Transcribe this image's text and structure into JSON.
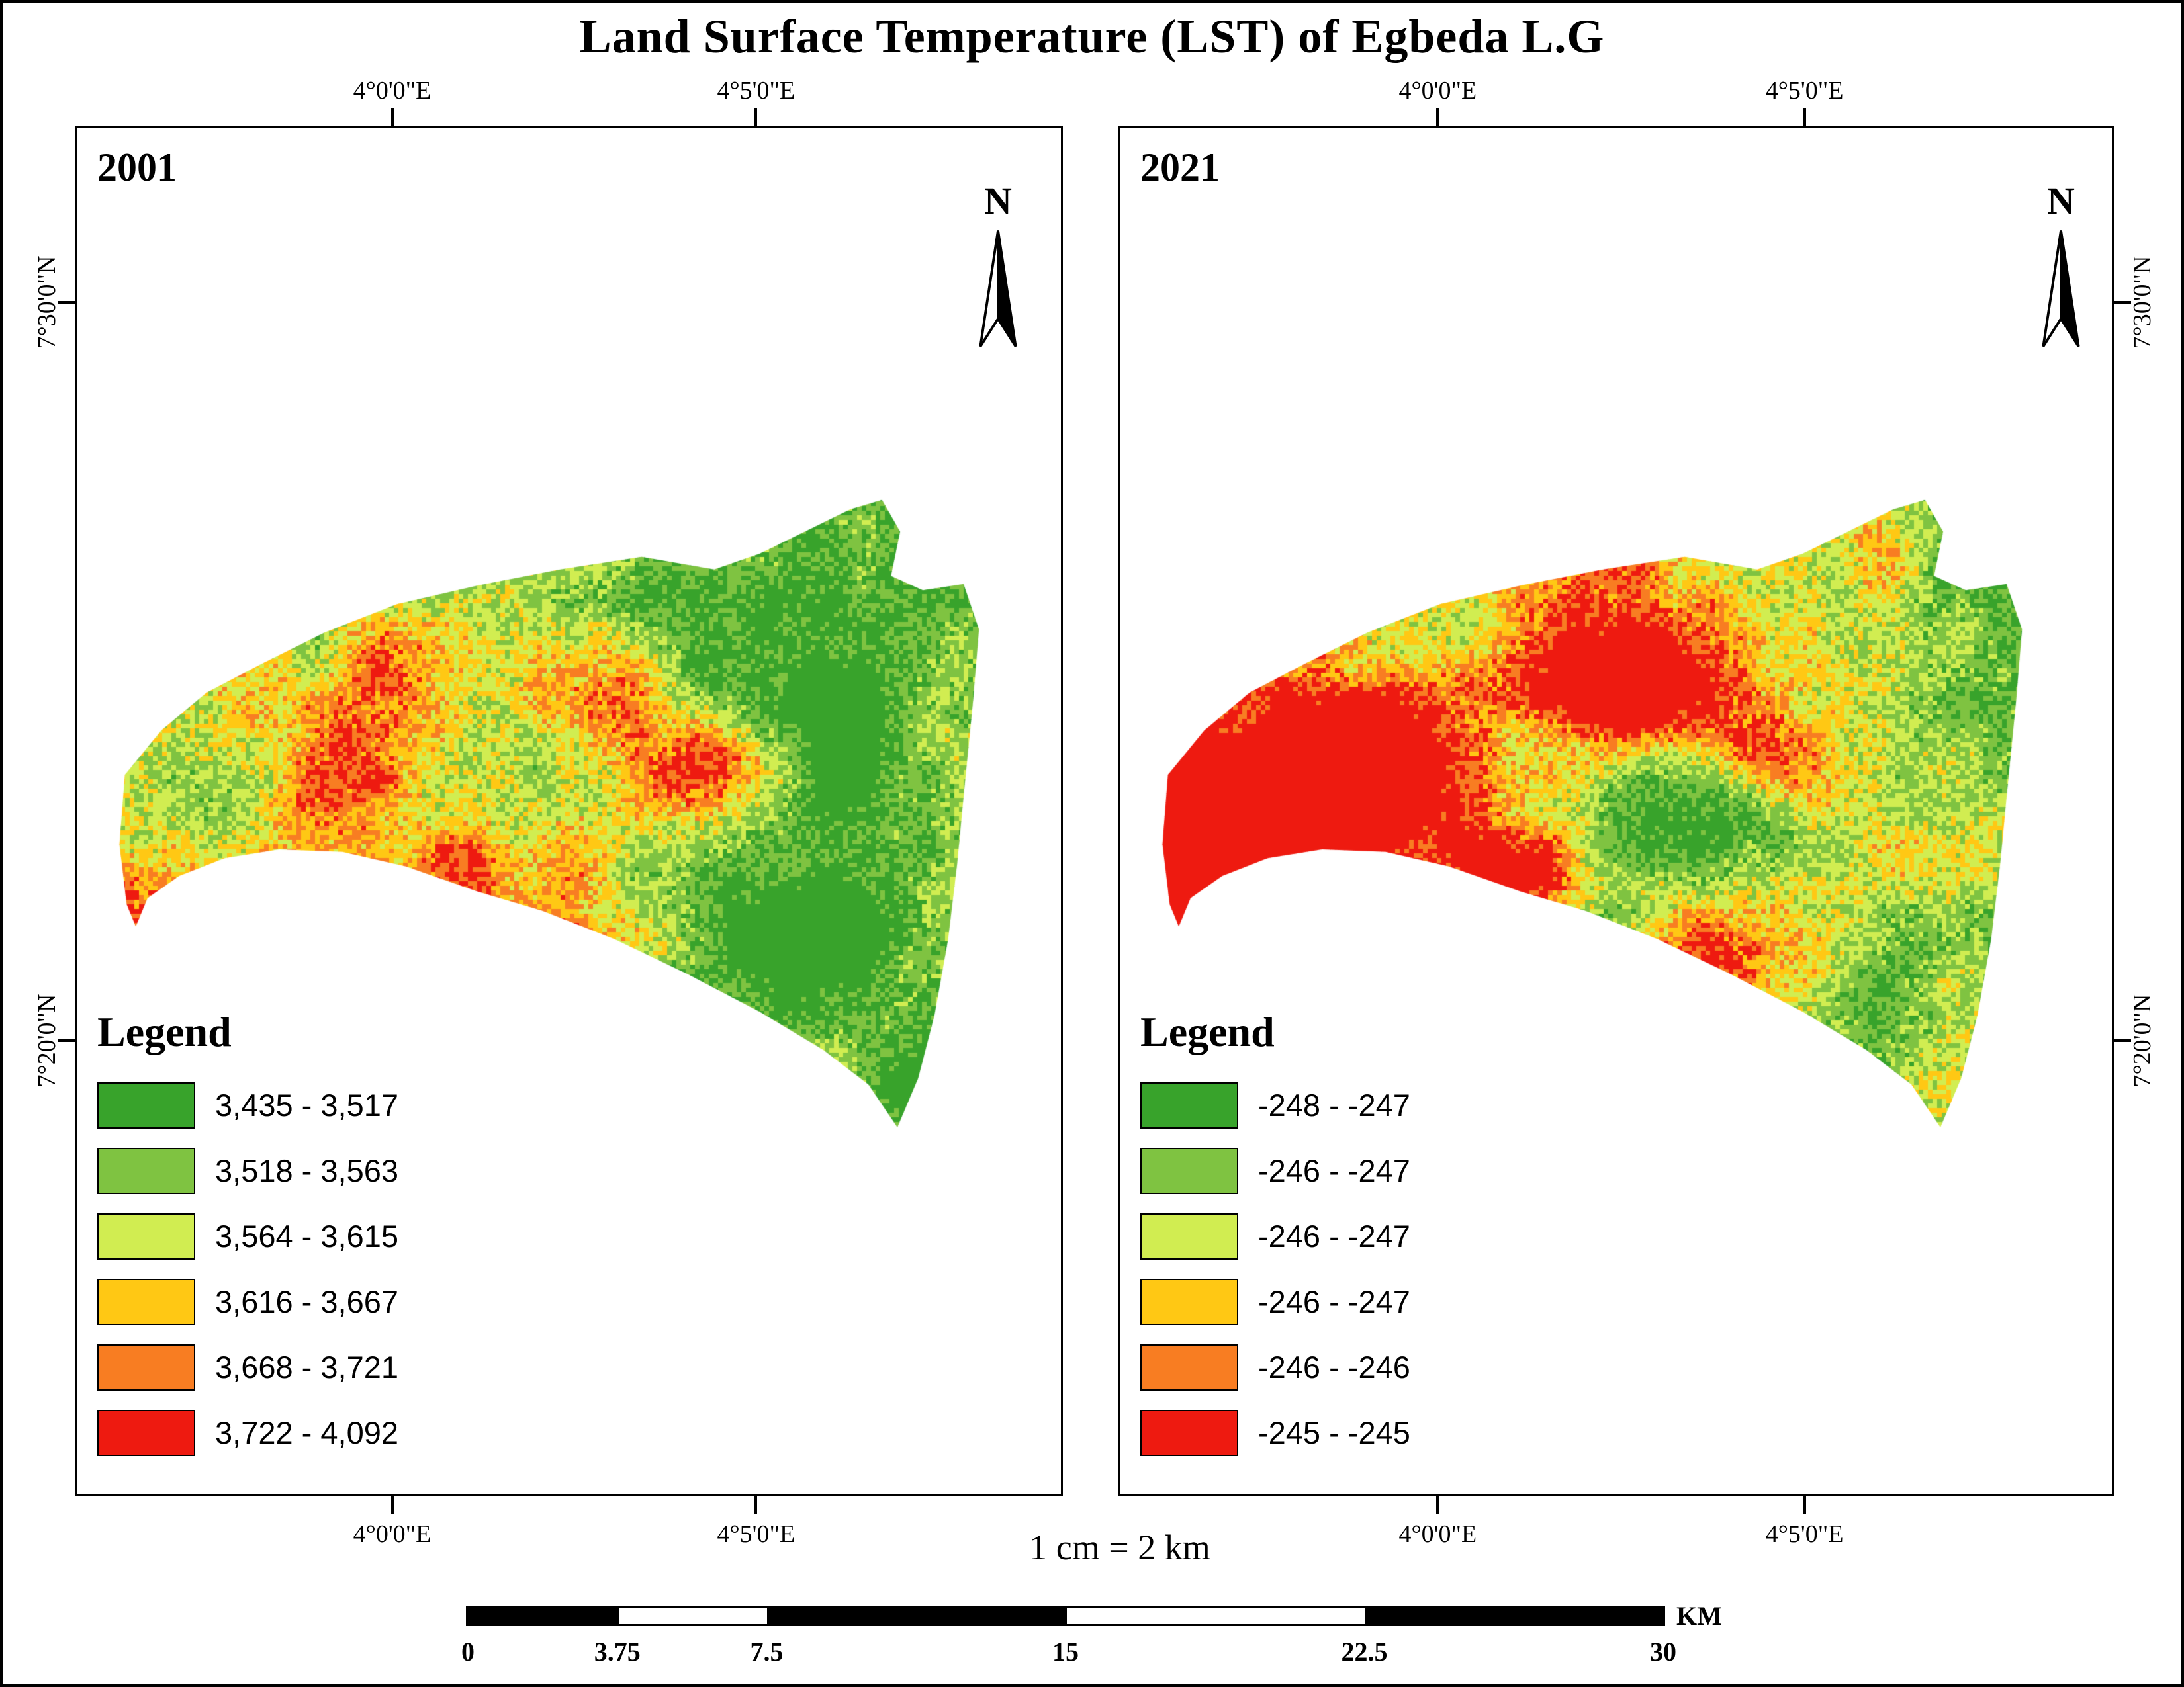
{
  "title": "Land Surface Temperature (LST) of Egbeda L.G",
  "scale_text": "1 cm = 2 km",
  "scalebar": {
    "labels": [
      "0",
      "3.75",
      "7.5",
      "15",
      "22.5",
      "30"
    ],
    "unit": "KM"
  },
  "panels": [
    {
      "year": "2001",
      "north_label": "N",
      "legend_title": "Legend",
      "lon_labels": [
        "4°0'0\"E",
        "4°5'0\"E"
      ],
      "lat_labels": [
        "7°30'0\"N",
        "7°20'0\"N"
      ],
      "legend": [
        {
          "color": "#38a32b",
          "label": "3,435 - 3,517"
        },
        {
          "color": "#7fc341",
          "label": "3,518 - 3,563"
        },
        {
          "color": "#d1ed51",
          "label": "3,564 - 3,615"
        },
        {
          "color": "#ffc814",
          "label": "3,616 - 3,667"
        },
        {
          "color": "#f87d22",
          "label": "3,668 - 3,721"
        },
        {
          "color": "#ee1a10",
          "label": "3,722 - 4,092"
        }
      ]
    },
    {
      "year": "2021",
      "north_label": "N",
      "legend_title": "Legend",
      "lon_labels": [
        "4°0'0\"E",
        "4°5'0\"E"
      ],
      "lat_labels": [
        "7°30'0\"N",
        "7°20'0\"N"
      ],
      "legend": [
        {
          "color": "#38a32b",
          "label": "-248 - -247"
        },
        {
          "color": "#7fc341",
          "label": "-246 - -247"
        },
        {
          "color": "#d1ed51",
          "label": "-246 - -247"
        },
        {
          "color": "#ffc814",
          "label": "-246 - -247"
        },
        {
          "color": "#f87d22",
          "label": "-246 - -246"
        },
        {
          "color": "#ee1a10",
          "label": "-245 - -245"
        }
      ]
    }
  ],
  "map_render": {
    "outline": [
      [
        0.01,
        0.44
      ],
      [
        0.05,
        0.37
      ],
      [
        0.1,
        0.31
      ],
      [
        0.16,
        0.265
      ],
      [
        0.23,
        0.215
      ],
      [
        0.31,
        0.17
      ],
      [
        0.4,
        0.14
      ],
      [
        0.49,
        0.115
      ],
      [
        0.58,
        0.095
      ],
      [
        0.66,
        0.115
      ],
      [
        0.71,
        0.09
      ],
      [
        0.76,
        0.055
      ],
      [
        0.81,
        0.02
      ],
      [
        0.845,
        0.005
      ],
      [
        0.865,
        0.055
      ],
      [
        0.855,
        0.125
      ],
      [
        0.89,
        0.148
      ],
      [
        0.935,
        0.138
      ],
      [
        0.952,
        0.21
      ],
      [
        0.945,
        0.33
      ],
      [
        0.936,
        0.46
      ],
      [
        0.928,
        0.58
      ],
      [
        0.918,
        0.7
      ],
      [
        0.903,
        0.82
      ],
      [
        0.885,
        0.92
      ],
      [
        0.862,
        0.998
      ],
      [
        0.83,
        0.93
      ],
      [
        0.78,
        0.875
      ],
      [
        0.71,
        0.815
      ],
      [
        0.63,
        0.755
      ],
      [
        0.55,
        0.7
      ],
      [
        0.47,
        0.655
      ],
      [
        0.4,
        0.625
      ],
      [
        0.32,
        0.585
      ],
      [
        0.25,
        0.562
      ],
      [
        0.18,
        0.558
      ],
      [
        0.12,
        0.572
      ],
      [
        0.07,
        0.6
      ],
      [
        0.035,
        0.635
      ],
      [
        0.022,
        0.68
      ],
      [
        0.012,
        0.645
      ],
      [
        0.004,
        0.55
      ]
    ],
    "hotspots": [
      [
        0.52,
        0.3,
        0.01,
        0.38
      ],
      [
        0.67,
        0.42,
        0.005,
        0.3
      ],
      [
        0.4,
        0.6,
        0.004,
        0.22
      ],
      [
        0.24,
        0.44,
        0.008,
        0.22
      ],
      [
        0.58,
        0.72,
        0.004,
        0.18
      ],
      [
        0.33,
        0.3,
        0.006,
        0.18
      ]
    ],
    "thresholds": [
      0.34,
      0.46,
      0.56,
      0.66,
      0.76
    ],
    "panels": [
      {
        "seed": 3,
        "west": 0.5,
        "lift": -0.12,
        "hot": 1.0
      },
      {
        "seed": 11,
        "west": 0.6,
        "lift": -0.03,
        "hot": 1.2
      }
    ]
  }
}
